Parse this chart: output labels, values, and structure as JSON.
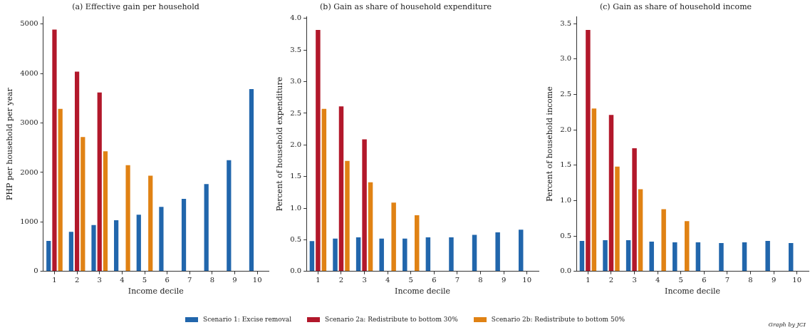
{
  "chart_data": [
    {
      "type": "bar",
      "title": "(a) Effective gain per household",
      "xlabel": "Income decile",
      "ylabel": "PHP per household per year",
      "categories": [
        "1",
        "2",
        "3",
        "4",
        "5",
        "6",
        "7",
        "8",
        "9",
        "10"
      ],
      "ylim": [
        0,
        5150
      ],
      "yticks": [
        0,
        1000,
        2000,
        3000,
        4000,
        5000
      ],
      "grid": false,
      "legend": "bottom",
      "annotations": [
        "Graph by JCI"
      ],
      "series": [
        {
          "name": "Scenario 1: Excise removal",
          "color": "#2166ac",
          "values": [
            630,
            815,
            950,
            1050,
            1160,
            1320,
            1480,
            1780,
            2260,
            3700
          ]
        },
        {
          "name": "Scenario 2a: Redistribute to bottom 30%",
          "color": "#b2182b",
          "values": [
            4900,
            4050,
            3630,
            null,
            null,
            null,
            null,
            null,
            null,
            null
          ]
        },
        {
          "name": "Scenario 2b: Redistribute to bottom 50%",
          "color": "#e08214",
          "values": [
            3300,
            2730,
            2440,
            2160,
            1950,
            null,
            null,
            null,
            null,
            null
          ]
        }
      ]
    },
    {
      "type": "bar",
      "title": "(b) Gain as share of household expenditure",
      "xlabel": "Income decile",
      "ylabel": "Percent of household expenditure",
      "categories": [
        "1",
        "2",
        "3",
        "4",
        "5",
        "6",
        "7",
        "8",
        "9",
        "10"
      ],
      "ylim": [
        0,
        4.03
      ],
      "yticks": [
        {
          "value": 0,
          "label": "0.0"
        },
        {
          "value": 0.5,
          "label": "0.5"
        },
        {
          "value": 1,
          "label": "1.0"
        },
        {
          "value": 1.5,
          "label": "1.5"
        },
        {
          "value": 2,
          "label": "2.0"
        },
        {
          "value": 2.5,
          "label": "2.5"
        },
        {
          "value": 3,
          "label": "3.0"
        },
        {
          "value": 3.5,
          "label": "3.5"
        },
        {
          "value": 4,
          "label": "4.0"
        }
      ],
      "grid": false,
      "series": [
        {
          "color": "#2166ac",
          "values": [
            0.49,
            0.53,
            0.55,
            0.53,
            0.53,
            0.55,
            0.55,
            0.59,
            0.63,
            0.67
          ]
        },
        {
          "color": "#b2182b",
          "values": [
            3.83,
            2.62,
            2.1,
            null,
            null,
            null,
            null,
            null,
            null,
            null
          ]
        },
        {
          "color": "#e08214",
          "values": [
            2.58,
            1.76,
            1.42,
            1.1,
            0.9,
            null,
            null,
            null,
            null,
            null
          ]
        }
      ]
    },
    {
      "type": "bar",
      "title": "(c) Gain as share of household income",
      "xlabel": "Income decile",
      "ylabel": "Percent of household income",
      "categories": [
        "1",
        "2",
        "3",
        "4",
        "5",
        "6",
        "7",
        "8",
        "9",
        "10"
      ],
      "ylim": [
        0,
        3.6
      ],
      "yticks": [
        {
          "value": 0,
          "label": "0.0"
        },
        {
          "value": 0.5,
          "label": "0.5"
        },
        {
          "value": 1,
          "label": "1.0"
        },
        {
          "value": 1.5,
          "label": "1.5"
        },
        {
          "value": 2,
          "label": "2.0"
        },
        {
          "value": 2.5,
          "label": "2.5"
        },
        {
          "value": 3,
          "label": "3.0"
        },
        {
          "value": 3.5,
          "label": "3.5"
        }
      ],
      "grid": false,
      "series": [
        {
          "color": "#2166ac",
          "values": [
            0.44,
            0.45,
            0.45,
            0.43,
            0.42,
            0.42,
            0.41,
            0.42,
            0.44,
            0.41
          ]
        },
        {
          "color": "#b2182b",
          "values": [
            3.42,
            2.22,
            1.75,
            null,
            null,
            null,
            null,
            null,
            null,
            null
          ]
        },
        {
          "color": "#e08214",
          "values": [
            2.31,
            1.49,
            1.17,
            0.89,
            0.72,
            null,
            null,
            null,
            null,
            null
          ]
        }
      ]
    }
  ]
}
